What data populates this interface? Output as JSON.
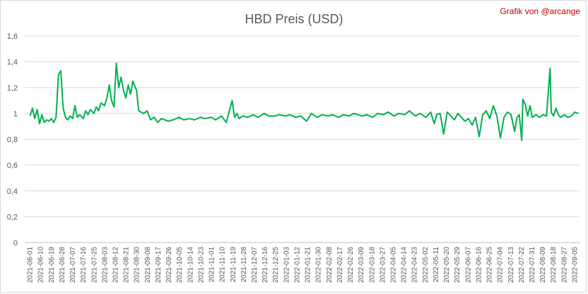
{
  "chart_data": {
    "type": "line",
    "title": "HBD Preis (USD)",
    "credit": "Grafik von @arcange",
    "xlabel": "",
    "ylabel": "",
    "ylim": [
      0,
      1.6
    ],
    "y_ticks": [
      "0",
      "0,2",
      "0,4",
      "0,6",
      "0,8",
      "1",
      "1,2",
      "1,4",
      "1,6"
    ],
    "y_tick_values": [
      0,
      0.2,
      0.4,
      0.6,
      0.8,
      1.0,
      1.2,
      1.4,
      1.6
    ],
    "grid": true,
    "legend": "none",
    "line_color": "#00b050",
    "x_ticks": [
      "2021-06-01",
      "2021-06-10",
      "2021-06-19",
      "2021-06-28",
      "2021-07-07",
      "2021-07-16",
      "2021-07-25",
      "2021-08-03",
      "2021-08-12",
      "2021-08-21",
      "2021-08-30",
      "2021-09-08",
      "2021-09-17",
      "2021-09-26",
      "2021-10-05",
      "2021-10-14",
      "2021-10-23",
      "2021-11-01",
      "2021-11-10",
      "2021-11-19",
      "2021-11-28",
      "2021-12-07",
      "2021-12-16",
      "2021-12-25",
      "2022-01-03",
      "2022-01-12",
      "2022-01-21",
      "2022-01-30",
      "2022-02-08",
      "2022-02-17",
      "2022-02-26",
      "2022-03-09",
      "2022-03-18",
      "2022-03-27",
      "2022-04-05",
      "2022-04-14",
      "2022-04-23",
      "2022-05-02",
      "2022-05-11",
      "2022-05-20",
      "2022-05-29",
      "2022-06-07",
      "2022-06-16",
      "2022-06-25",
      "2022-07-04",
      "2022-07-13",
      "2022-07-22",
      "2022-07-31",
      "2022-08-09",
      "2022-08-18",
      "2022-08-27",
      "2022-09-05"
    ],
    "series": [
      {
        "x": [
          "2021-06-01",
          "2021-06-03",
          "2021-06-05",
          "2021-06-07",
          "2021-06-09",
          "2021-06-11",
          "2021-06-13",
          "2021-06-15",
          "2021-06-17",
          "2021-06-19",
          "2021-06-21",
          "2021-06-23",
          "2021-06-25",
          "2021-06-27",
          "2021-06-29",
          "2021-07-01",
          "2021-07-03",
          "2021-07-05",
          "2021-07-07",
          "2021-07-09",
          "2021-07-11",
          "2021-07-13",
          "2021-07-16",
          "2021-07-18",
          "2021-07-20",
          "2021-07-22",
          "2021-07-25",
          "2021-07-27",
          "2021-07-29",
          "2021-07-31",
          "2021-08-03",
          "2021-08-05",
          "2021-08-07",
          "2021-08-09",
          "2021-08-11",
          "2021-08-13",
          "2021-08-15",
          "2021-08-17",
          "2021-08-19",
          "2021-08-21",
          "2021-08-23",
          "2021-08-25",
          "2021-08-27",
          "2021-08-30",
          "2021-09-01",
          "2021-09-03",
          "2021-09-05",
          "2021-09-08",
          "2021-09-11",
          "2021-09-14",
          "2021-09-17",
          "2021-09-20",
          "2021-09-23",
          "2021-09-26",
          "2021-09-30",
          "2021-10-05",
          "2021-10-09",
          "2021-10-14",
          "2021-10-18",
          "2021-10-23",
          "2021-10-27",
          "2021-11-01",
          "2021-11-05",
          "2021-11-10",
          "2021-11-14",
          "2021-11-19",
          "2021-11-21",
          "2021-11-23",
          "2021-11-25",
          "2021-11-28",
          "2021-12-02",
          "2021-12-07",
          "2021-12-11",
          "2021-12-16",
          "2021-12-20",
          "2021-12-25",
          "2021-12-29",
          "2022-01-03",
          "2022-01-07",
          "2022-01-12",
          "2022-01-16",
          "2022-01-21",
          "2022-01-25",
          "2022-01-30",
          "2022-02-03",
          "2022-02-08",
          "2022-02-12",
          "2022-02-17",
          "2022-02-21",
          "2022-02-26",
          "2022-03-02",
          "2022-03-09",
          "2022-03-13",
          "2022-03-18",
          "2022-03-22",
          "2022-03-27",
          "2022-03-31",
          "2022-04-05",
          "2022-04-09",
          "2022-04-14",
          "2022-04-18",
          "2022-04-23",
          "2022-04-27",
          "2022-05-02",
          "2022-05-06",
          "2022-05-09",
          "2022-05-11",
          "2022-05-14",
          "2022-05-17",
          "2022-05-20",
          "2022-05-23",
          "2022-05-26",
          "2022-05-29",
          "2022-06-01",
          "2022-06-04",
          "2022-06-07",
          "2022-06-10",
          "2022-06-13",
          "2022-06-16",
          "2022-06-19",
          "2022-06-22",
          "2022-06-25",
          "2022-06-28",
          "2022-07-01",
          "2022-07-04",
          "2022-07-07",
          "2022-07-10",
          "2022-07-13",
          "2022-07-16",
          "2022-07-18",
          "2022-07-20",
          "2022-07-22",
          "2022-07-23",
          "2022-07-25",
          "2022-07-27",
          "2022-07-29",
          "2022-07-31",
          "2022-08-03",
          "2022-08-06",
          "2022-08-09",
          "2022-08-12",
          "2022-08-15",
          "2022-08-16",
          "2022-08-18",
          "2022-08-20",
          "2022-08-22",
          "2022-08-24",
          "2022-08-27",
          "2022-08-30",
          "2022-09-02",
          "2022-09-05",
          "2022-09-08"
        ],
        "values": [
          0.98,
          1.04,
          0.96,
          1.03,
          0.92,
          0.99,
          0.93,
          0.95,
          0.94,
          0.96,
          0.93,
          0.97,
          1.3,
          1.33,
          1.04,
          0.97,
          0.95,
          0.98,
          0.96,
          1.06,
          0.97,
          0.99,
          0.96,
          1.02,
          0.99,
          1.03,
          1.0,
          1.05,
          1.02,
          1.08,
          1.06,
          1.12,
          1.22,
          1.1,
          1.05,
          1.39,
          1.2,
          1.28,
          1.18,
          1.12,
          1.22,
          1.15,
          1.25,
          1.18,
          1.02,
          1.01,
          1.0,
          1.02,
          0.95,
          0.97,
          0.93,
          0.96,
          0.95,
          0.94,
          0.95,
          0.97,
          0.95,
          0.96,
          0.95,
          0.97,
          0.96,
          0.97,
          0.95,
          0.98,
          0.93,
          1.1,
          0.97,
          1.0,
          0.96,
          0.98,
          0.97,
          0.99,
          0.97,
          1.0,
          0.98,
          0.98,
          0.99,
          0.98,
          0.99,
          0.97,
          0.98,
          0.94,
          1.0,
          0.97,
          0.99,
          0.98,
          0.99,
          0.97,
          0.99,
          0.98,
          1.0,
          0.98,
          0.99,
          0.97,
          1.0,
          0.99,
          1.01,
          0.98,
          1.0,
          0.99,
          1.02,
          0.98,
          1.0,
          0.97,
          1.01,
          0.92,
          0.99,
          1.0,
          0.84,
          1.01,
          0.98,
          0.95,
          1.0,
          0.97,
          0.94,
          0.96,
          0.91,
          0.97,
          0.82,
          0.99,
          1.02,
          0.96,
          1.06,
          0.98,
          0.81,
          0.97,
          1.01,
          0.99,
          0.86,
          0.97,
          0.99,
          0.79,
          1.11,
          1.07,
          0.98,
          1.06,
          0.97,
          0.99,
          0.97,
          0.99,
          0.98,
          1.35,
          1.01,
          0.98,
          1.04,
          0.99,
          0.97,
          0.99,
          0.97,
          0.98,
          1.01,
          1.0
        ]
      }
    ]
  }
}
